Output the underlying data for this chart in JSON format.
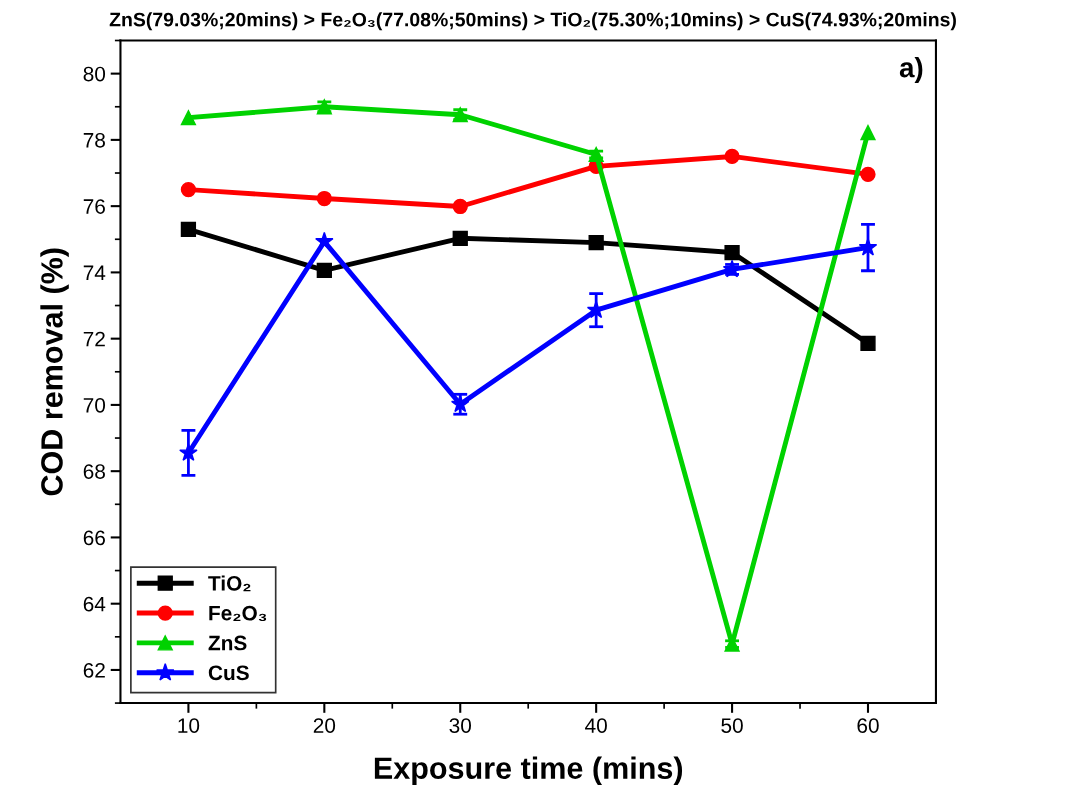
{
  "chart_data": {
    "type": "line",
    "title": "ZnS(79.03%;20mins) > Fe₂O₃(77.08%;50mins) > TiO₂(75.30%;10mins) > CuS(74.93%;20mins)",
    "xlabel": "Exposure time (mins)",
    "ylabel": "COD removal (%)",
    "annotations": [
      "a)"
    ],
    "x": [
      10,
      20,
      30,
      40,
      50,
      60
    ],
    "series": [
      {
        "name": "TiO₂",
        "color": "#000000",
        "marker": "square",
        "values": [
          75.3,
          74.06,
          75.03,
          74.9,
          74.6,
          71.86
        ],
        "errors": [
          null,
          null,
          null,
          null,
          0.15,
          null
        ]
      },
      {
        "name": "Fe₂O₃",
        "color": "#ff0000",
        "marker": "circle",
        "values": [
          76.5,
          76.23,
          75.99,
          77.2,
          77.5,
          76.96
        ]
      },
      {
        "name": "ZnS",
        "color": "#00d200",
        "marker": "triangle",
        "values": [
          78.67,
          79.0,
          78.76,
          77.56,
          62.78,
          78.22
        ],
        "errors": [
          null,
          0.15,
          0.15,
          0.1,
          0.1,
          null
        ]
      },
      {
        "name": "CuS",
        "color": "#0000ff",
        "marker": "star",
        "values": [
          68.55,
          74.93,
          70.02,
          72.86,
          74.09,
          74.75
        ],
        "errors": [
          0.68,
          null,
          0.3,
          0.5,
          0.15,
          0.7
        ]
      }
    ],
    "xlim": [
      5,
      65
    ],
    "ylim": [
      61,
      81
    ],
    "xticks": [
      10,
      20,
      30,
      40,
      50,
      60,
      {
        "value": 15,
        "label": null
      },
      {
        "value": 25,
        "label": null
      },
      {
        "value": 35,
        "label": null
      },
      {
        "value": 45,
        "label": null
      },
      {
        "value": 55,
        "label": null
      }
    ],
    "yticks": [
      62,
      64,
      66,
      68,
      70,
      72,
      74,
      76,
      78,
      80,
      {
        "value": 61,
        "label": null
      },
      {
        "value": 63,
        "label": null
      },
      {
        "value": 65,
        "label": null
      },
      {
        "value": 67,
        "label": null
      },
      {
        "value": 69,
        "label": null
      },
      {
        "value": 71,
        "label": null
      },
      {
        "value": 73,
        "label": null
      },
      {
        "value": 75,
        "label": null
      },
      {
        "value": 77,
        "label": null
      },
      {
        "value": 79,
        "label": null
      },
      {
        "value": 81,
        "label": null
      }
    ],
    "grid": false,
    "legend": "bottom left",
    "line_style": "solid"
  }
}
